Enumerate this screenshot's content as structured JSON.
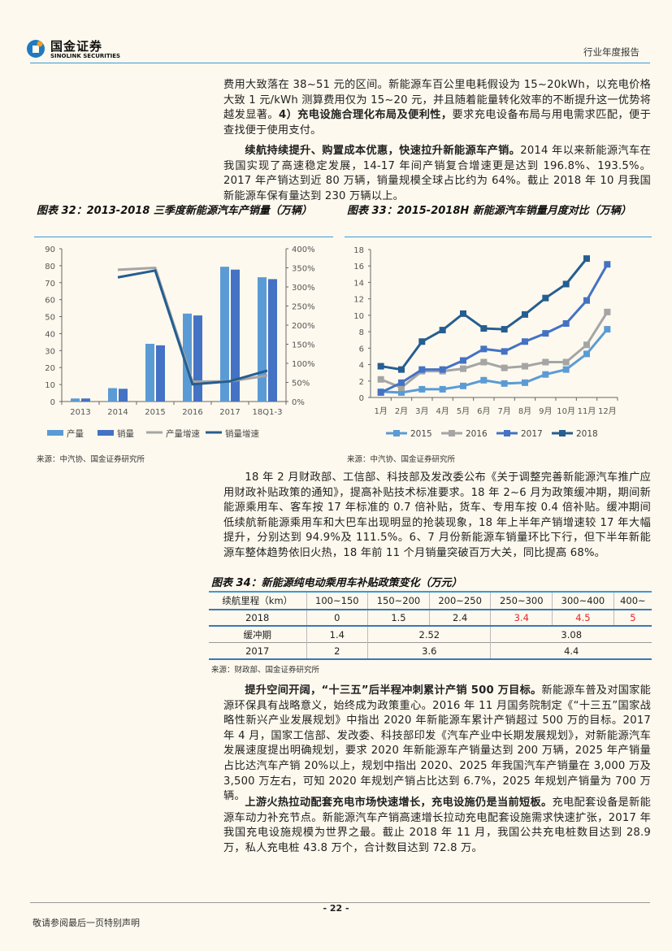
{
  "header": {
    "logo_cn": "国金证券",
    "logo_en": "SINOLINK SECURITIES",
    "report_type": "行业年度报告"
  },
  "paragraphs": [
    {
      "bold": "",
      "text": "费用大致落在 38~51 元的区间。新能源车百公里电耗假设为 15~20kWh，以充电价格大致 1 元/kWh 测算费用仅为 15~20 元，并且随着能量转化效率的不断提升这一优势将越发显著。",
      "bold2": "4）充电设施合理化布局及便利性，",
      "text2": "要求充电设备布局与用电需求匹配，便于查找便于使用支付。"
    },
    {
      "bold": "续航持续提升、购置成本优惠，快速拉升新能源车产销。",
      "text": "2014 年以来新能源汽车在我国实现了高速稳定发展，14-17 年间产销复合增速更是达到 196.8%、193.5%。2017 年产销达到近 80 万辆，销量规模全球占比约为 64%。截止 2018 年 10 月我国新能源车保有量达到 230 万辆以上。"
    },
    {
      "bold": "",
      "text": "18 年 2 月财政部、工信部、科技部及发改委公布《关于调整完善新能源汽车推广应用财政补贴政策的通知》，提高补贴技术标准要求。18 年 2~6 月为政策缓冲期，期间新能源乘用车、客车按 17 年标准的 0.7 倍补贴，货车、专用车按 0.4 倍补贴。缓冲期间低续航新能源乘用车和大巴车出现明显的抢装现象，18 年上半年产销增速较 17 年大幅提升，分别达到 94.9%及 111.5%。6、7 月份新能源车销量环比下行，但下半年新能源车整体趋势依旧火热，18 年前 11 个月销量突破百万大关，同比提高 68%。"
    },
    {
      "bold": "提升空间开阔，“十三五”后半程冲刺累计产销 500 万目标。",
      "text": "新能源车普及对国家能源环保具有战略意义，始终成为政策重心。2016 年 11 月国务院制定《“十三五”国家战略性新兴产业发展规划》中指出 2020 年新能源车累计产销超过 500 万的目标。2017 年 4 月，国家工信部、发改委、科技部印发《汽车产业中长期发展规划》，对新能源汽车发展速度提出明确规划，要求 2020 年新能源车产销量达到 200 万辆，2025 年产销量占比达汽车产销 20%以上，规划中指出 2020、2025 年我国汽车产销量在 3,000 万及 3,500 万左右，可知 2020 年规划产销占比达到 6.7%，2025 年规划产销量为 700 万辆。"
    },
    {
      "bold": "上游火热拉动配套充电市场快速增长，充电设施仍是当前短板。",
      "text": "充电配套设备是新能源车动力补充节点。新能源汽车产销高速增长拉动充电配套设施需求快速扩张，2017 年我国充电设施规模为世界之最。截止 2018 年 11 月，我国公共充电桩数目达到 28.9 万，私人充电桩 43.8 万个，合计数目达到 72.8 万。"
    }
  ],
  "chart_data": [
    {
      "type": "bar",
      "title": "图表 32：2013-2018 三季度新能源汽车产销量（万辆）",
      "categories": [
        "2013",
        "2014",
        "2015",
        "2016",
        "2017",
        "18Q1-3"
      ],
      "ylim": [
        0,
        90
      ],
      "yticks": [
        "0",
        "10",
        "20",
        "30",
        "40",
        "50",
        "60",
        "70",
        "80",
        "90"
      ],
      "y2lim": [
        0,
        400
      ],
      "y2ticks": [
        "0%",
        "50%",
        "100%",
        "150%",
        "200%",
        "250%",
        "300%",
        "350%",
        "400%"
      ],
      "series": [
        {
          "name": "产量",
          "kind": "bar",
          "color": "#5b9bd5",
          "values": [
            1.8,
            7.9,
            34.0,
            51.8,
            79.4,
            73.2
          ]
        },
        {
          "name": "销量",
          "kind": "bar",
          "color": "#4472c4",
          "values": [
            1.8,
            7.5,
            33.1,
            50.7,
            77.7,
            72.1
          ]
        },
        {
          "name": "产量增速",
          "kind": "line",
          "axis": "right",
          "color": "#a5a5a5",
          "values": [
            null,
            345,
            350,
            52,
            53,
            68
          ]
        },
        {
          "name": "销量增速",
          "kind": "line",
          "axis": "right",
          "color": "#255e91",
          "values": [
            null,
            325,
            343,
            45,
            53,
            81
          ]
        }
      ],
      "source": "来源：中汽协、国金证券研究所"
    },
    {
      "type": "line",
      "title": "图表 33：2015-2018H 新能源汽车销量月度对比（万辆）",
      "categories": [
        "1月",
        "2月",
        "3月",
        "4月",
        "5月",
        "6月",
        "7月",
        "8月",
        "9月",
        "10月",
        "11月",
        "12月"
      ],
      "ylim": [
        0,
        18
      ],
      "yticks": [
        "0",
        "2",
        "4",
        "6",
        "8",
        "10",
        "12",
        "14",
        "16",
        "18"
      ],
      "series": [
        {
          "name": "2015",
          "color": "#5b9bd5",
          "values": [
            0.7,
            0.6,
            1.0,
            1.0,
            1.4,
            2.1,
            1.7,
            1.8,
            2.8,
            3.4,
            5.3,
            8.3
          ]
        },
        {
          "name": "2016",
          "color": "#a5a5a5",
          "values": [
            2.2,
            1.2,
            3.2,
            3.2,
            3.5,
            4.3,
            3.6,
            3.8,
            4.3,
            4.3,
            6.4,
            10.4
          ]
        },
        {
          "name": "2017",
          "color": "#4472c4",
          "values": [
            0.6,
            1.8,
            3.4,
            3.4,
            4.5,
            5.9,
            5.6,
            6.8,
            7.8,
            9.0,
            11.8,
            16.2
          ]
        },
        {
          "name": "2018",
          "color": "#255e91",
          "values": [
            3.8,
            3.4,
            6.8,
            8.2,
            10.2,
            8.4,
            8.3,
            10.1,
            12.1,
            13.8,
            16.9,
            null
          ]
        }
      ],
      "source": "来源：中汽协、国金证券研究所"
    }
  ],
  "table34": {
    "title": "图表 34：新能源纯电动乘用车补贴政策变化（万元）",
    "header": [
      "续航里程（km）",
      "100~150",
      "150~200",
      "200~250",
      "250~300",
      "300~400",
      "400~"
    ],
    "row2018": [
      "2018",
      "0",
      "1.5",
      "2.4",
      "3.4",
      "4.5",
      "5"
    ],
    "buffer": [
      "缓冲期",
      "1.4",
      "2.52",
      "3.08"
    ],
    "row2017": [
      "2017",
      "2",
      "3.6",
      "4.4"
    ],
    "highlight_color": "#e0262a",
    "source": "来源：财政部、国金证券研究所"
  },
  "footer": {
    "page": "- 22 -",
    "disclaimer": "敬请参阅最后一页特别声明"
  }
}
